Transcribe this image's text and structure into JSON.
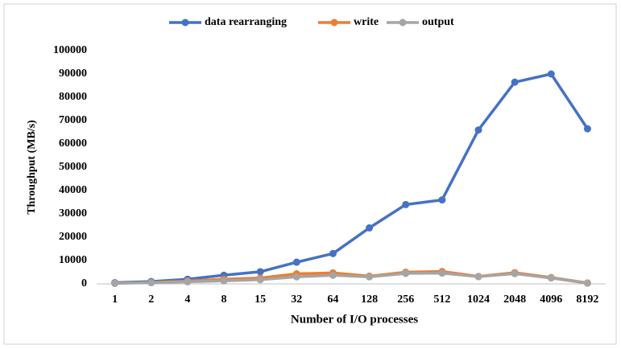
{
  "chart_data": {
    "type": "line",
    "y_label": "Throughput  (MB/s)",
    "x_label": "Number of I/O processes",
    "categories": [
      "1",
      "2",
      "4",
      "8",
      "15",
      "32",
      "64",
      "128",
      "256",
      "512",
      "1024",
      "2048",
      "4096",
      "8192"
    ],
    "series": [
      {
        "name": "data rearranging",
        "color": "#4472c4",
        "values": [
          500,
          1000,
          2000,
          3700,
          5200,
          9300,
          13000,
          24000,
          34000,
          36000,
          66000,
          86500,
          90000,
          66500
        ]
      },
      {
        "name": "write",
        "color": "#ed7d31",
        "values": [
          300,
          600,
          1200,
          2000,
          2500,
          4300,
          4700,
          3300,
          5000,
          5300,
          3200,
          4800,
          2700,
          400
        ]
      },
      {
        "name": "output",
        "color": "#a5a5a5",
        "values": [
          200,
          500,
          900,
          1300,
          1800,
          3000,
          3700,
          3000,
          4500,
          4600,
          3100,
          4400,
          2500,
          300
        ]
      }
    ],
    "ylim": [
      0,
      100000
    ],
    "yticks": [
      0,
      10000,
      20000,
      30000,
      40000,
      50000,
      60000,
      70000,
      80000,
      90000,
      100000
    ],
    "grid": false,
    "legend": "top"
  }
}
